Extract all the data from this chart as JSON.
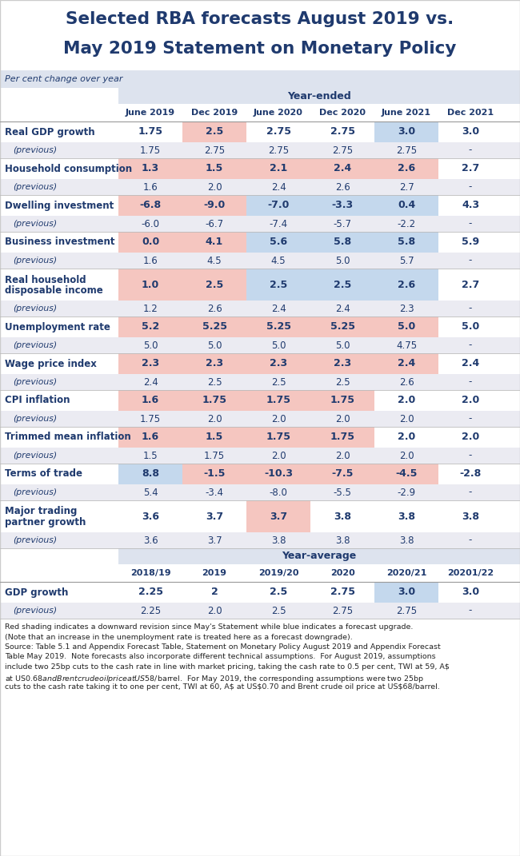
{
  "title_line1": "Selected RBA forecasts August 2019 vs.",
  "title_line2": "May 2019 Statement on Monetary Policy",
  "subtitle": "Per cent change over year",
  "title_color": "#1f3a6e",
  "text_color": "#1f3a6e",
  "bg_color": "#ffffff",
  "header_bg": "#dde3ee",
  "row_bg_light": "#ebebf2",
  "row_bg_white": "#ffffff",
  "pink": "#f5c6c0",
  "blue_cell": "#c4d8ed",
  "year_ended_cols": [
    "June 2019",
    "Dec 2019",
    "June 2020",
    "Dec 2020",
    "June 2021",
    "Dec 2021"
  ],
  "year_avg_cols": [
    "2018/19",
    "2019",
    "2019/20",
    "2020",
    "2020/21",
    "20201/22"
  ],
  "rows": [
    {
      "label": "Real GDP growth",
      "label2": "",
      "current": [
        "1.75",
        "2.5",
        "2.75",
        "2.75",
        "3.0",
        "3.0"
      ],
      "previous": [
        "1.75",
        "2.75",
        "2.75",
        "2.75",
        "2.75",
        "-"
      ],
      "cell_colors": [
        "none",
        "pink",
        "none",
        "none",
        "blue",
        "none"
      ],
      "two_line": false
    },
    {
      "label": "Household consumption",
      "label2": "",
      "current": [
        "1.3",
        "1.5",
        "2.1",
        "2.4",
        "2.6",
        "2.7"
      ],
      "previous": [
        "1.6",
        "2.0",
        "2.4",
        "2.6",
        "2.7",
        "-"
      ],
      "cell_colors": [
        "pink",
        "pink",
        "pink",
        "pink",
        "pink",
        "none"
      ],
      "two_line": false
    },
    {
      "label": "Dwelling investment",
      "label2": "",
      "current": [
        "-6.8",
        "-9.0",
        "-7.0",
        "-3.3",
        "0.4",
        "4.3"
      ],
      "previous": [
        "-6.0",
        "-6.7",
        "-7.4",
        "-5.7",
        "-2.2",
        "-"
      ],
      "cell_colors": [
        "pink",
        "pink",
        "blue",
        "blue",
        "blue",
        "none"
      ],
      "two_line": false
    },
    {
      "label": "Business investment",
      "label2": "",
      "current": [
        "0.0",
        "4.1",
        "5.6",
        "5.8",
        "5.8",
        "5.9"
      ],
      "previous": [
        "1.6",
        "4.5",
        "4.5",
        "5.0",
        "5.7",
        "-"
      ],
      "cell_colors": [
        "pink",
        "pink",
        "blue",
        "blue",
        "blue",
        "none"
      ],
      "two_line": false
    },
    {
      "label": "Real household",
      "label2": "disposable income",
      "current": [
        "1.0",
        "2.5",
        "2.5",
        "2.5",
        "2.6",
        "2.7"
      ],
      "previous": [
        "1.2",
        "2.6",
        "2.4",
        "2.4",
        "2.3",
        "-"
      ],
      "cell_colors": [
        "pink",
        "pink",
        "blue",
        "blue",
        "blue",
        "none"
      ],
      "two_line": true
    },
    {
      "label": "Unemployment rate",
      "label2": "",
      "current": [
        "5.2",
        "5.25",
        "5.25",
        "5.25",
        "5.0",
        "5.0"
      ],
      "previous": [
        "5.0",
        "5.0",
        "5.0",
        "5.0",
        "4.75",
        "-"
      ],
      "cell_colors": [
        "pink",
        "pink",
        "pink",
        "pink",
        "pink",
        "none"
      ],
      "two_line": false
    },
    {
      "label": "Wage price index",
      "label2": "",
      "current": [
        "2.3",
        "2.3",
        "2.3",
        "2.3",
        "2.4",
        "2.4"
      ],
      "previous": [
        "2.4",
        "2.5",
        "2.5",
        "2.5",
        "2.6",
        "-"
      ],
      "cell_colors": [
        "pink",
        "pink",
        "pink",
        "pink",
        "pink",
        "none"
      ],
      "two_line": false
    },
    {
      "label": "CPI inflation",
      "label2": "",
      "current": [
        "1.6",
        "1.75",
        "1.75",
        "1.75",
        "2.0",
        "2.0"
      ],
      "previous": [
        "1.75",
        "2.0",
        "2.0",
        "2.0",
        "2.0",
        "-"
      ],
      "cell_colors": [
        "pink",
        "pink",
        "pink",
        "pink",
        "none",
        "none"
      ],
      "two_line": false
    },
    {
      "label": "Trimmed mean inflation",
      "label2": "",
      "current": [
        "1.6",
        "1.5",
        "1.75",
        "1.75",
        "2.0",
        "2.0"
      ],
      "previous": [
        "1.5",
        "1.75",
        "2.0",
        "2.0",
        "2.0",
        "-"
      ],
      "cell_colors": [
        "pink",
        "pink",
        "pink",
        "pink",
        "none",
        "none"
      ],
      "two_line": false
    },
    {
      "label": "Terms of trade",
      "label2": "",
      "current": [
        "8.8",
        "-1.5",
        "-10.3",
        "-7.5",
        "-4.5",
        "-2.8"
      ],
      "previous": [
        "5.4",
        "-3.4",
        "-8.0",
        "-5.5",
        "-2.9",
        "-"
      ],
      "cell_colors": [
        "blue",
        "pink",
        "pink",
        "pink",
        "pink",
        "none"
      ],
      "two_line": false
    },
    {
      "label": "Major trading",
      "label2": "partner growth",
      "current": [
        "3.6",
        "3.7",
        "3.7",
        "3.8",
        "3.8",
        "3.8"
      ],
      "previous": [
        "3.6",
        "3.7",
        "3.8",
        "3.8",
        "3.8",
        "-"
      ],
      "cell_colors": [
        "none",
        "none",
        "pink",
        "none",
        "none",
        "none"
      ],
      "two_line": true
    }
  ],
  "year_avg_rows": [
    {
      "label": "GDP growth",
      "label2": "",
      "current": [
        "2.25",
        "2",
        "2.5",
        "2.75",
        "3.0",
        "3.0"
      ],
      "previous": [
        "2.25",
        "2.0",
        "2.5",
        "2.75",
        "2.75",
        "-"
      ],
      "cell_colors": [
        "none",
        "none",
        "none",
        "none",
        "blue",
        "none"
      ],
      "two_line": false
    }
  ],
  "footnote_lines": [
    "Red shading indicates a downward revision since May's Statement while blue indicates a forecast upgrade.",
    "(Note that an increase in the unemployment rate is treated here as a forecast downgrade).",
    "Source: Table 5.1 and Appendix Forecast Table, Statement on Monetary Policy August 2019 and Appendix Forecast",
    "Table May 2019.  Note forecasts also incorporate different technical assumptions.  For August 2019, assumptions",
    "include two 25bp cuts to the cash rate in line with market pricing, taking the cash rate to 0.5 per cent, TWI at 59, A$",
    "at US$0.68 and Brent crude oil price at US$58/barrel.  For May 2019, the corresponding assumptions were two 25bp",
    "cuts to the cash rate taking it to one per cent, TWI at 60, A$ at US$0.70 and Brent crude oil price at US$68/barrel."
  ]
}
